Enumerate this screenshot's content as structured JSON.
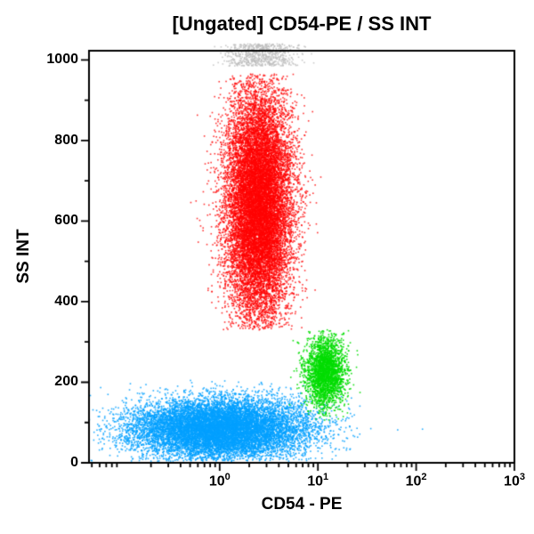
{
  "chart_data": {
    "type": "scatter",
    "title": "[Ungated] CD54-PE / SS INT",
    "xlabel": "CD54 - PE",
    "ylabel": "SS INT",
    "x_scale": "log",
    "x_log_range": [
      -1.33,
      3.0
    ],
    "y_range": [
      0,
      1023
    ],
    "grid": false,
    "legend": "none",
    "axis_color": "#000000",
    "background_color": "#ffffff",
    "x_ticks": [
      {
        "base": "10",
        "exp": "0",
        "log": 0
      },
      {
        "base": "10",
        "exp": "1",
        "log": 1
      },
      {
        "base": "10",
        "exp": "2",
        "log": 2
      },
      {
        "base": "10",
        "exp": "3",
        "log": 3
      }
    ],
    "y_ticks": [
      {
        "label": "0",
        "value": 0
      },
      {
        "label": "200",
        "value": 200
      },
      {
        "label": "400",
        "value": 400
      },
      {
        "label": "600",
        "value": 600
      },
      {
        "label": "800",
        "value": 800
      },
      {
        "label": "1000",
        "value": 1000
      }
    ],
    "y_minor_ticks": [
      100,
      300,
      500,
      700,
      900
    ],
    "populations": [
      {
        "name": "saturated-events-gray",
        "color": "#bdbdbd",
        "alpha": 0.8,
        "n": 650,
        "x_log_mean": 0.42,
        "x_log_sd": 0.18,
        "y_uniform": [
          985,
          1040
        ],
        "unclipped": true
      },
      {
        "name": "low-ss-blue-population",
        "color": "#00a0ff",
        "alpha": 0.85,
        "n": 12000,
        "x_log_mean": 0.0,
        "x_log_sd": 0.45,
        "y_mean": 85,
        "y_sd": 38,
        "y_clip": [
          4,
          205
        ]
      },
      {
        "name": "cd54-positive-green-population",
        "color": "#00dd00",
        "alpha": 0.9,
        "n": 2500,
        "x_log_mean": 1.08,
        "x_log_sd": 0.1,
        "y_mean": 225,
        "y_sd": 45,
        "y_clip": [
          105,
          330
        ]
      },
      {
        "name": "high-ss-red-population",
        "color": "#ff0000",
        "alpha": 0.8,
        "n": 15000,
        "x_log_mean": 0.4,
        "x_log_sd": 0.17,
        "y_mean": 640,
        "y_sd": 145,
        "y_clip": [
          330,
          965
        ]
      }
    ]
  }
}
